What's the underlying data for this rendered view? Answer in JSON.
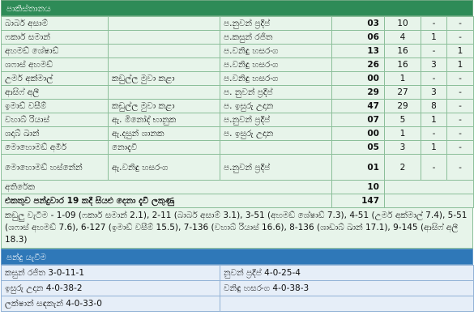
{
  "batting_header": "පාකිස්තානය",
  "batters": [
    {
      "name": "බාබර් අසාම්",
      "fielder": "",
      "bowler": "ප.නුවන් ප්‍රදීප්",
      "runs": "03",
      "balls": "10",
      "fours": "-",
      "sixes": "-"
    },
    {
      "name": "ෆකාර් සමාන්",
      "fielder": "",
      "bowler": "ප.කසුන් රජිත",
      "runs": "06",
      "balls": "4",
      "fours": "1",
      "sixes": "-"
    },
    {
      "name": "අහමඩ් ශේෂාඩ්",
      "fielder": "",
      "bowler": "ප.වනිඳු හසරංග",
      "runs": "13",
      "balls": "16",
      "fours": "-",
      "sixes": "1"
    },
    {
      "name": "ශෆාස් අහමඩ්",
      "fielder": "",
      "bowler": "ප.වනිඳු හසරංග",
      "runs": "26",
      "balls": "16",
      "fours": "3",
      "sixes": "1"
    },
    {
      "name": "උමර් අක්මාල්",
      "fielder": "කඩුල්ල මුවා කළා",
      "bowler": "ප.වනිඳු හසරංග",
      "runs": "00",
      "balls": "1",
      "fours": "-",
      "sixes": "-"
    },
    {
      "name": "ආසිෆ් අලී",
      "fielder": "",
      "bowler": "ප. නුවන් ප්‍රදීප්",
      "runs": "29",
      "balls": "27",
      "fours": "3",
      "sixes": "-"
    },
    {
      "name": "ඉමාඩ් වසීම්",
      "fielder": "කඩුල්ල මුවා කළා",
      "bowler": "ප. ඉසුරු උදාන",
      "runs": "47",
      "balls": "29",
      "fours": "8",
      "sixes": "-"
    },
    {
      "name": "වහාබ් රියාස්",
      "fielder": "ඇ. මිනෝද් භානුක",
      "bowler": "ප.නුවන් ප්‍රදීප්",
      "runs": "07",
      "balls": "5",
      "fours": "1",
      "sixes": "-"
    },
    {
      "name": "ශදාබ් ඛාන්",
      "fielder": "ඇ.දසුන් ශානක",
      "bowler": "ප. ඉසුරු උදාන",
      "runs": "00",
      "balls": "1",
      "fours": "-",
      "sixes": "-"
    },
    {
      "name": "මොහොමඩ් අමීර්",
      "fielder": "නොදැවී",
      "bowler": "",
      "runs": "05",
      "balls": "3",
      "fours": "1",
      "sixes": "-"
    },
    {
      "name": "මොහොමඩ් හස්නේන්",
      "fielder": "ඇ.වනිඳු හසරංග",
      "bowler": "ප.නුවන් ප්‍රදීප්",
      "runs": "01",
      "balls": "2",
      "fours": "-",
      "sixes": "-"
    }
  ],
  "extras_label": "අතිරේක",
  "extras_value": "10",
  "total_label": "එකතුව පන්දුවාර 19 කදී සියළු දෙනා දැවී ලකුණු",
  "total_value": "147",
  "fall_of_wickets": "කඩුලු වැටීම - 1-09 (ෆකාර් සමාන් 2.1), 2-11 (බාබර් අසාම් 3.1), 3-51 (අහමඩ් ශේෂාඩ් 7.3), 4-51 (උමර් අක්මාල් 7.4), 5-51 (ශෆාස් අහමඩ් 7.6), 6-127 (ඉමාඩ් වසීම් 15.5), 7-136 (වහාබ් රියාස් 16.6), 8-136 (ශාඩාබ් ඛාන් 17.1), 9-145 (ආසිෆ් අලී 18.3)",
  "bowling_header": "පන්දු යැවීම",
  "bowling": [
    [
      "කසුන් රජිත 3-0-11-1",
      "නුවන් ප්‍රදීප් 4-0-25-4"
    ],
    [
      "ඉසුරු උදාන 4-0-38-2",
      "වනිඳු හසරංග 4-0-38-3"
    ],
    [
      "ලක්ෂාන් සඳකැන් 4-0-33-0",
      ""
    ]
  ],
  "colors": {
    "batting_header": "#2e8b57",
    "bowling_header": "#2f78b8"
  }
}
